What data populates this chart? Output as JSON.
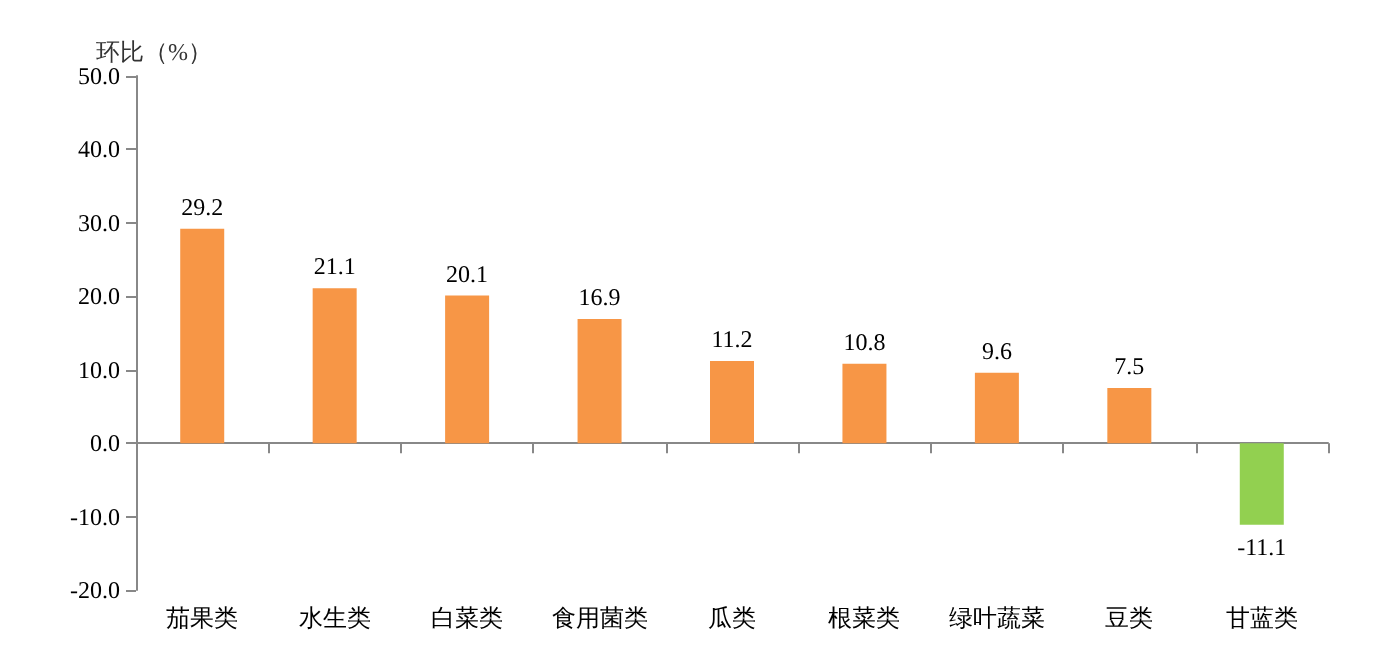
{
  "chart_data": {
    "type": "bar",
    "ylabel": "环比（%）",
    "categories": [
      "茄果类",
      "水生类",
      "白菜类",
      "食用菌类",
      "瓜类",
      "根菜类",
      "绿叶蔬菜",
      "豆类",
      "甘蓝类"
    ],
    "values": [
      29.2,
      21.1,
      20.1,
      16.9,
      11.2,
      10.8,
      9.6,
      7.5,
      -11.1
    ],
    "colors": [
      "#f79646",
      "#f79646",
      "#f79646",
      "#f79646",
      "#f79646",
      "#f79646",
      "#f79646",
      "#f79646",
      "#92d050"
    ],
    "ylim": [
      -20,
      50
    ],
    "yticks": [
      {
        "value": -20,
        "label": "-20.0"
      },
      {
        "value": -10,
        "label": "-10.0"
      },
      {
        "value": 0,
        "label": "0.0"
      },
      {
        "value": 10,
        "label": "10.0"
      },
      {
        "value": 20,
        "label": "20.0"
      },
      {
        "value": 30,
        "label": "30.0"
      },
      {
        "value": 40,
        "label": "40.0"
      },
      {
        "value": 50,
        "label": "50.0"
      }
    ],
    "data_labels": true
  }
}
